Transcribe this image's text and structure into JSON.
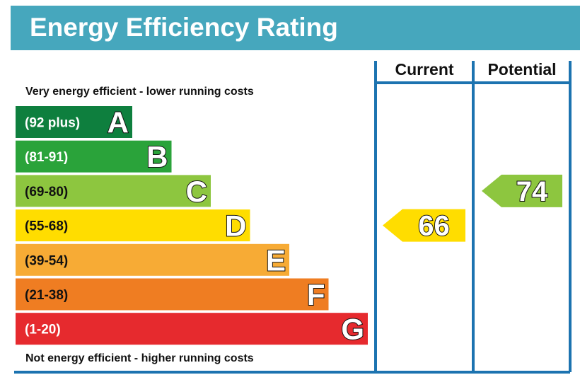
{
  "header": {
    "title": "Energy Efficiency Rating"
  },
  "columns": {
    "current": "Current",
    "potential": "Potential"
  },
  "captions": {
    "top": "Very energy efficient - lower running costs",
    "bottom": "Not energy efficient - higher running costs"
  },
  "colors": {
    "title_bar": "#46a7bd",
    "border": "#1c73b0"
  },
  "chart_data": {
    "type": "bar",
    "title": "Energy Efficiency Rating",
    "bands": [
      {
        "letter": "A",
        "range": "(92 plus)",
        "min": 92,
        "max": null,
        "color": "#0e7f3e",
        "range_text": "light"
      },
      {
        "letter": "B",
        "range": "(81-91)",
        "min": 81,
        "max": 91,
        "color": "#2aa33a",
        "range_text": "light"
      },
      {
        "letter": "C",
        "range": "(69-80)",
        "min": 69,
        "max": 80,
        "color": "#8dc63f",
        "range_text": "dark"
      },
      {
        "letter": "D",
        "range": "(55-68)",
        "min": 55,
        "max": 68,
        "color": "#ffdd00",
        "range_text": "dark"
      },
      {
        "letter": "E",
        "range": "(39-54)",
        "min": 39,
        "max": 54,
        "color": "#f7ab35",
        "range_text": "dark"
      },
      {
        "letter": "F",
        "range": "(21-38)",
        "min": 21,
        "max": 38,
        "color": "#ef7d22",
        "range_text": "dark"
      },
      {
        "letter": "G",
        "range": "(1-20)",
        "min": 1,
        "max": 20,
        "color": "#e62a2e",
        "range_text": "light"
      }
    ],
    "ratings": [
      {
        "column": "Current",
        "value": 66,
        "band": "D",
        "color": "#ffdd00"
      },
      {
        "column": "Potential",
        "value": 74,
        "band": "C",
        "color": "#8dc63f"
      }
    ]
  }
}
